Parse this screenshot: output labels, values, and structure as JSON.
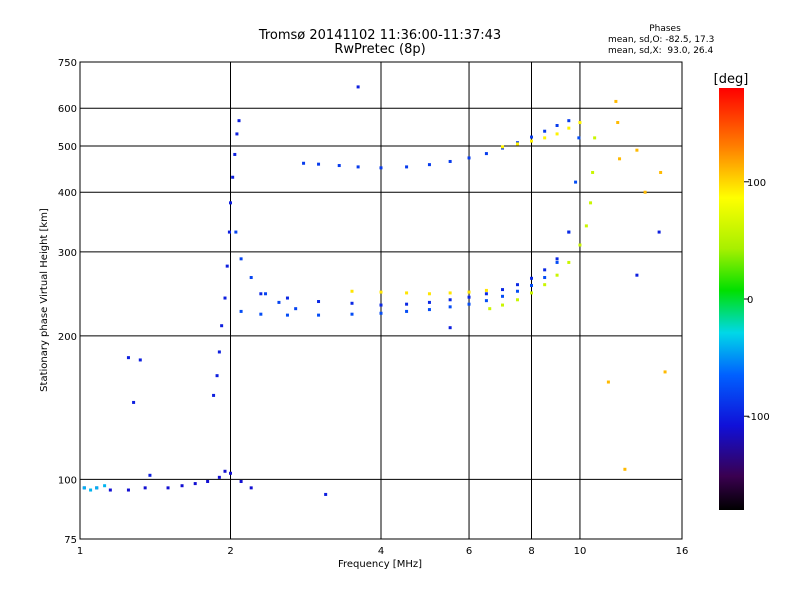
{
  "chart_data": {
    "type": "scatter",
    "title": "Tromsø 20141102 11:36:00-11:37:43",
    "subtitle": "RwPretec (8p)",
    "xlabel": "Frequency [MHz]",
    "ylabel": "Stationary phase Virtual Height [km]",
    "x_scale": "log",
    "y_scale": "log",
    "xlim": [
      1,
      16
    ],
    "ylim": [
      75,
      750
    ],
    "xticks": [
      1,
      2,
      4,
      6,
      8,
      10,
      16
    ],
    "yticks": [
      75,
      100,
      200,
      300,
      400,
      500,
      600,
      750
    ],
    "grid": true,
    "phase_stats": {
      "heading": "Phases",
      "line_o": "mean, sd,O: -82.5, 17.3",
      "line_x": "mean, sd,X:  93.0, 26.4"
    },
    "colorbar": {
      "label": "[deg]",
      "range": [
        -180,
        180
      ],
      "ticks": [
        100,
        0,
        -100
      ]
    },
    "traces": [
      {
        "role": "E-layer echo",
        "phase_deg": -110,
        "x": [
          1.02,
          1.08,
          1.15,
          1.25,
          1.35,
          1.5,
          1.6,
          1.7,
          1.8,
          1.9,
          1.95,
          2.0,
          2.1,
          2.2
        ],
        "y": [
          96,
          96,
          95,
          95,
          96,
          96,
          97,
          98,
          99,
          101,
          104,
          103,
          99,
          96
        ]
      },
      {
        "role": "E-layer echo (cyan)",
        "phase_deg": -40,
        "x": [
          1.02,
          1.05,
          1.08,
          1.12
        ],
        "y": [
          96,
          95,
          96,
          97
        ]
      },
      {
        "role": "F1 cusp",
        "phase_deg": -100,
        "x": [
          1.85,
          1.88,
          1.9,
          1.92,
          1.95,
          1.97,
          1.99,
          2.0,
          2.02,
          2.04,
          2.06,
          2.08
        ],
        "y": [
          150,
          165,
          185,
          210,
          240,
          280,
          330,
          380,
          430,
          480,
          530,
          565
        ]
      },
      {
        "role": "F1 cusp lower branch",
        "phase_deg": -80,
        "x": [
          2.05,
          2.1,
          2.2,
          2.35,
          2.5,
          2.7
        ],
        "y": [
          330,
          290,
          265,
          245,
          235,
          228
        ]
      },
      {
        "role": "F2 O-mode",
        "phase_deg": -75,
        "x": [
          2.1,
          2.3,
          2.6,
          3.0,
          3.5,
          4.0,
          4.5,
          5.0,
          5.5,
          6.0,
          6.5,
          7.0,
          7.5,
          8.0,
          8.5,
          9.0,
          9.5,
          9.8,
          9.95
        ],
        "y": [
          225,
          222,
          221,
          221,
          222,
          223,
          225,
          227,
          230,
          233,
          237,
          242,
          248,
          255,
          265,
          285,
          330,
          420,
          520
        ]
      },
      {
        "role": "F2 O-mode upper branch",
        "phase_deg": -95,
        "x": [
          2.3,
          2.6,
          3.0,
          3.5,
          4.0,
          4.5,
          5.0,
          5.5,
          6.0,
          6.5,
          7.0,
          7.5,
          8.0,
          8.5,
          9.0,
          9.5
        ],
        "y": [
          245,
          240,
          236,
          234,
          232,
          233,
          235,
          238,
          241,
          245,
          250,
          256,
          264,
          275,
          290,
          330
        ]
      },
      {
        "role": "F2 X-mode",
        "phase_deg": 95,
        "x": [
          3.5,
          4.0,
          4.5,
          5.0,
          5.5,
          6.0,
          6.5
        ],
        "y": [
          248,
          247,
          246,
          245,
          246,
          247,
          249
        ]
      },
      {
        "role": "F2 X-mode lower",
        "phase_deg": 60,
        "x": [
          6.6,
          7.0,
          7.5,
          8.0,
          8.5,
          9.0,
          9.5,
          10.0,
          10.3,
          10.5,
          10.6,
          10.7
        ],
        "y": [
          228,
          232,
          238,
          246,
          256,
          268,
          285,
          310,
          340,
          380,
          440,
          520
        ]
      },
      {
        "role": "multiple-hop trace",
        "phase_deg": -85,
        "x": [
          2.8,
          3.0,
          3.3,
          3.6,
          4.0,
          4.5,
          5.0,
          5.5,
          6.0,
          6.5,
          7.0,
          7.5,
          8.0,
          8.5,
          9.0,
          9.5
        ],
        "y": [
          460,
          458,
          455,
          452,
          450,
          452,
          457,
          464,
          472,
          482,
          495,
          508,
          522,
          537,
          552,
          565
        ]
      },
      {
        "role": "multiple-hop trace X",
        "phase_deg": 90,
        "x": [
          7.0,
          7.5,
          8.0,
          8.5,
          9.0,
          9.5,
          10.0
        ],
        "y": [
          498,
          505,
          512,
          520,
          530,
          545,
          560
        ]
      },
      {
        "role": "scattered",
        "phase_deg": -100,
        "x": [
          1.25,
          1.28,
          1.32,
          1.38,
          3.1,
          3.6,
          5.5,
          13.0,
          14.4
        ],
        "y": [
          180,
          145,
          178,
          102,
          93,
          665,
          208,
          268,
          330
        ]
      },
      {
        "role": "scattered X",
        "phase_deg": 110,
        "x": [
          11.8,
          11.9,
          12.0,
          13.0,
          13.5,
          14.5,
          14.8,
          11.4,
          12.3
        ],
        "y": [
          620,
          560,
          470,
          490,
          400,
          440,
          168,
          160,
          105
        ]
      }
    ]
  }
}
